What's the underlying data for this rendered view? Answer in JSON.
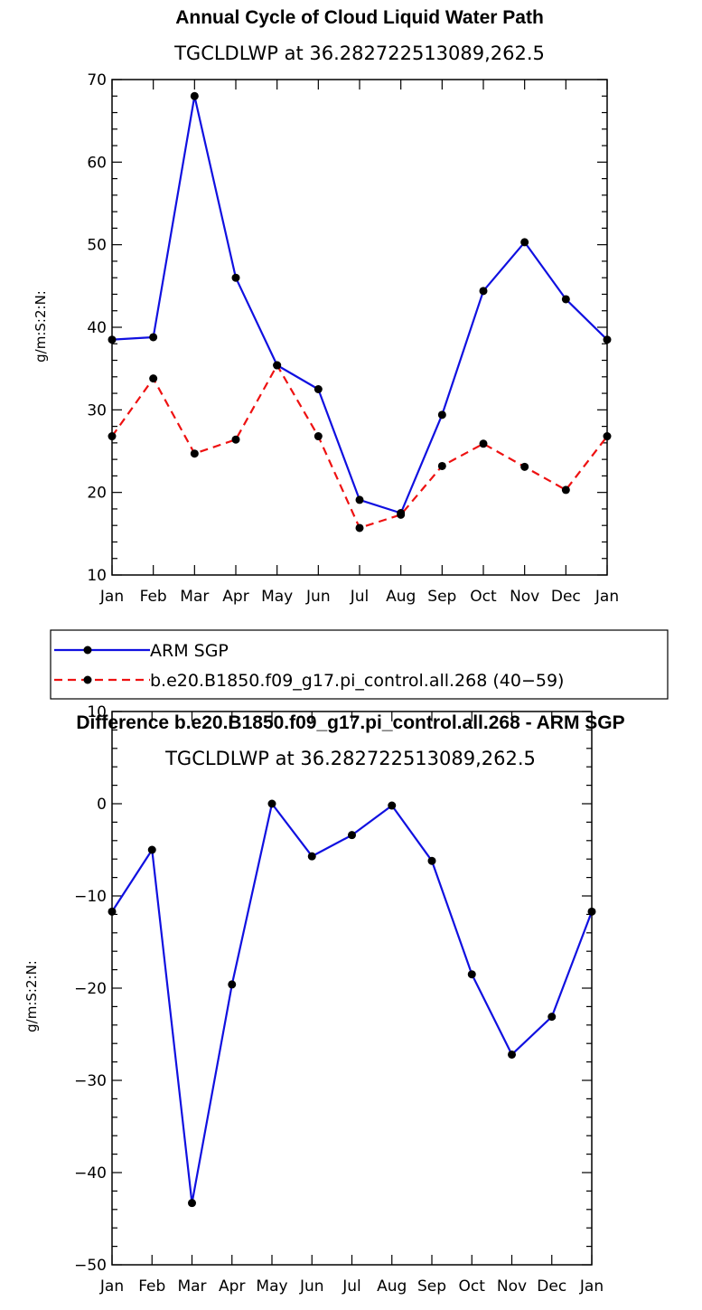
{
  "colors": {
    "arm": "#1010e0",
    "model": "#ee1111",
    "marker": "#000000",
    "axis": "#000000"
  },
  "chart_data": [
    {
      "type": "line",
      "title": "Annual Cycle of Cloud Liquid Water Path",
      "subtitle": "TGCLDLWP at 36.282722513089,262.5",
      "ylabel": "g/m:S:2:N:",
      "xlabel": "",
      "categories": [
        "Jan",
        "Feb",
        "Mar",
        "Apr",
        "May",
        "Jun",
        "Jul",
        "Aug",
        "Sep",
        "Oct",
        "Nov",
        "Dec",
        "Jan"
      ],
      "ylim": [
        10,
        70
      ],
      "yticks": [
        10,
        20,
        30,
        40,
        50,
        60,
        70
      ],
      "ytick_labels": [
        "10",
        "20",
        "30",
        "40",
        "50",
        "60",
        "70"
      ],
      "series": [
        {
          "name": "ARM SGP",
          "style": "solid",
          "color": "#1010e0",
          "values": [
            38.5,
            38.8,
            68.0,
            46.0,
            35.4,
            32.5,
            19.1,
            17.5,
            29.4,
            44.4,
            50.3,
            43.4,
            38.5
          ]
        },
        {
          "name": "b.e20.B1850.f09_g17.pi_control.all.268 (40−59)",
          "style": "dashed",
          "color": "#ee1111",
          "values": [
            26.8,
            33.8,
            24.7,
            26.4,
            35.4,
            26.8,
            15.7,
            17.3,
            23.2,
            25.9,
            23.1,
            20.3,
            26.8
          ]
        }
      ]
    },
    {
      "type": "line",
      "title": "Difference b.e20.B1850.f09_g17.pi_control.all.268 - ARM SGP",
      "subtitle": "TGCLDLWP at 36.282722513089,262.5",
      "ylabel": "g/m:S:2:N:",
      "xlabel": "",
      "categories": [
        "Jan",
        "Feb",
        "Mar",
        "Apr",
        "May",
        "Jun",
        "Jul",
        "Aug",
        "Sep",
        "Oct",
        "Nov",
        "Dec",
        "Jan"
      ],
      "ylim": [
        -50,
        10
      ],
      "yticks": [
        -50,
        -40,
        -30,
        -20,
        -10,
        0,
        10
      ],
      "ytick_labels": [
        "−50",
        "−40",
        "−30",
        "−20",
        "−10",
        "0",
        "10"
      ],
      "series": [
        {
          "name": "Difference",
          "style": "solid",
          "color": "#1010e0",
          "values": [
            -11.7,
            -5.0,
            -43.3,
            -19.6,
            0.0,
            -5.7,
            -3.4,
            -0.2,
            -6.2,
            -18.5,
            -27.2,
            -23.1,
            -11.7
          ]
        }
      ]
    }
  ],
  "legend": {
    "items": [
      {
        "label": "ARM SGP",
        "style": "solid",
        "color": "#1010e0"
      },
      {
        "label": "b.e20.B1850.f09_g17.pi_control.all.268 (40−59)",
        "style": "dashed",
        "color": "#ee1111"
      }
    ]
  }
}
